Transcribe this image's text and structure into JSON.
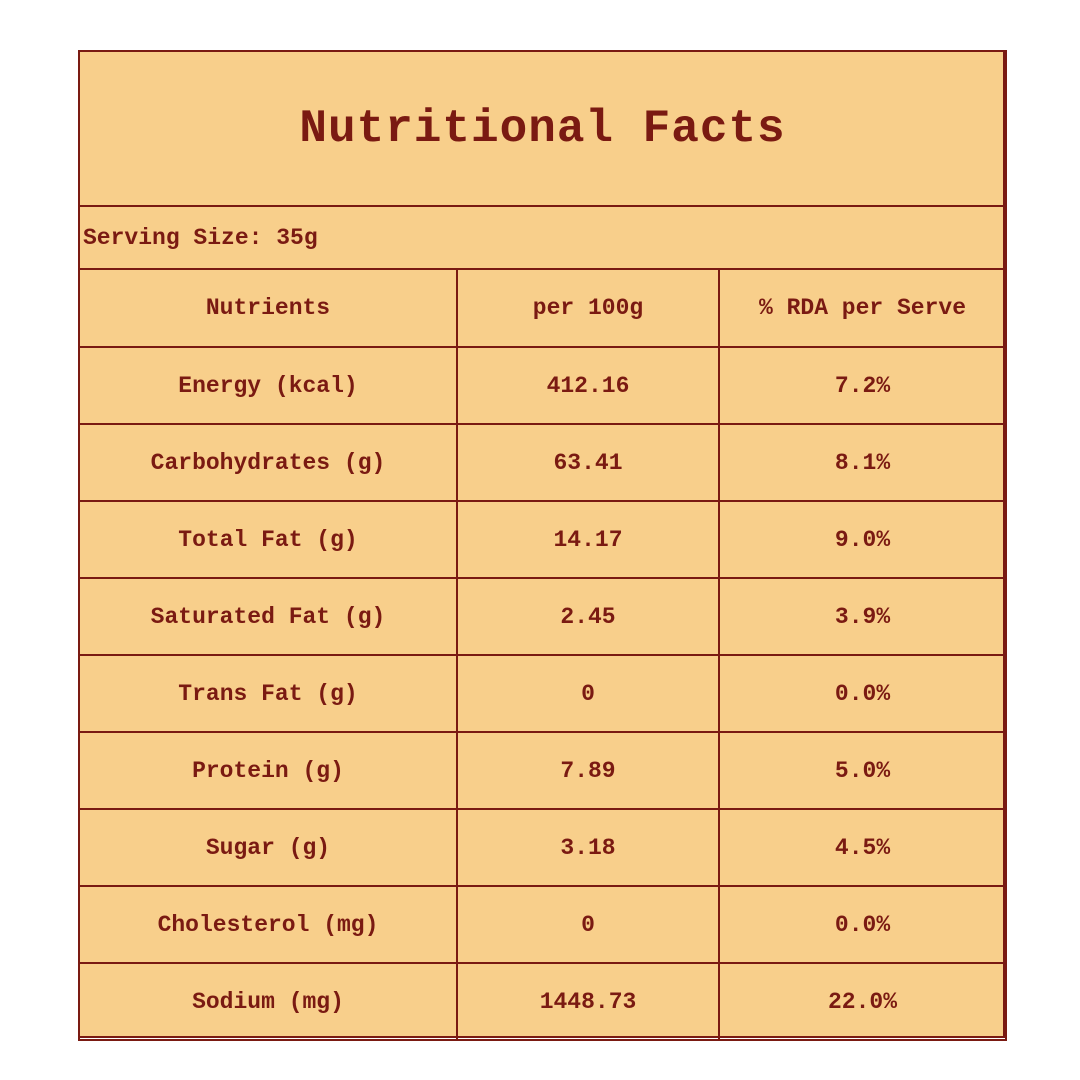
{
  "title": "Nutritional Facts",
  "serving_size": "Serving Size: 35g",
  "table": {
    "header": [
      "Nutrients",
      "per 100g",
      "% RDA per Serve"
    ],
    "rows": [
      [
        "Energy (kcal)",
        "412.16",
        "7.2%"
      ],
      [
        "Carbohydrates (g)",
        "63.41",
        "8.1%"
      ],
      [
        "Total Fat (g)",
        "14.17",
        "9.0%"
      ],
      [
        "Saturated Fat (g)",
        "2.45",
        "3.9%"
      ],
      [
        "Trans Fat (g)",
        "0",
        "0.0%"
      ],
      [
        "Protein (g)",
        "7.89",
        "5.0%"
      ],
      [
        "Sugar (g)",
        "3.18",
        "4.5%"
      ],
      [
        "Cholesterol (mg)",
        "0",
        "0.0%"
      ],
      [
        "Sodium (mg)",
        "1448.73",
        "22.0%"
      ]
    ]
  }
}
